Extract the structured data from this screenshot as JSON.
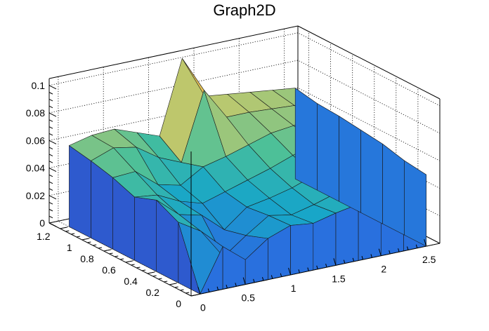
{
  "chart_data": {
    "type": "surface",
    "title": "Graph2D",
    "xlim": [
      -0.1,
      2.65
    ],
    "ylim": [
      0,
      1.3
    ],
    "zlim": [
      0,
      0.105
    ],
    "x_ticks": [
      0,
      0.5,
      1,
      1.5,
      2,
      2.5
    ],
    "x_tick_labels": [
      "0",
      "0.5",
      "1",
      "1.5",
      "2",
      "2.5"
    ],
    "y_ticks": [
      0,
      0.2,
      0.4,
      0.6,
      0.8,
      1,
      1.2
    ],
    "y_tick_labels": [
      "0",
      "0.2",
      "0.4",
      "0.6",
      "0.8",
      "1",
      "1.2"
    ],
    "z_ticks": [
      0,
      0.02,
      0.04,
      0.06,
      0.08,
      0.1
    ],
    "z_tick_labels": [
      "0",
      "0.02",
      "0.04",
      "0.06",
      "0.08",
      "0.1"
    ],
    "grid": true,
    "palette": [
      "#3a2ea0",
      "#2a6be0",
      "#18a6c8",
      "#48c09a",
      "#b8c870",
      "#f0c050",
      "#f8f020"
    ],
    "grid_x": [
      0,
      0.25,
      0.5,
      0.75,
      1,
      1.25,
      1.5,
      1.75,
      2,
      2.25,
      2.5
    ],
    "grid_y": [
      0,
      0.2,
      0.4,
      0.6,
      0.8,
      1,
      1.2
    ],
    "z": [
      [
        0.0,
        0.031,
        0.018,
        0.03,
        0.036,
        0.034,
        0.038,
        0.041,
        0.044,
        0.05,
        0.052
      ],
      [
        0.044,
        0.034,
        0.012,
        0.024,
        0.035,
        0.032,
        0.036,
        0.041,
        0.046,
        0.051,
        0.054
      ],
      [
        0.052,
        0.038,
        0.034,
        0.02,
        0.033,
        0.036,
        0.04,
        0.046,
        0.052,
        0.057,
        0.058
      ],
      [
        0.046,
        0.044,
        0.036,
        0.031,
        0.036,
        0.041,
        0.046,
        0.052,
        0.057,
        0.06,
        0.06
      ],
      [
        0.052,
        0.053,
        0.04,
        0.036,
        0.046,
        0.05,
        0.055,
        0.06,
        0.062,
        0.064,
        0.062
      ],
      [
        0.056,
        0.062,
        0.059,
        0.048,
        0.041,
        0.09,
        0.067,
        0.067,
        0.066,
        0.065,
        0.063
      ],
      [
        0.059,
        0.063,
        0.064,
        0.058,
        0.052,
        0.105,
        0.074,
        0.072,
        0.07,
        0.068,
        0.066
      ]
    ]
  }
}
